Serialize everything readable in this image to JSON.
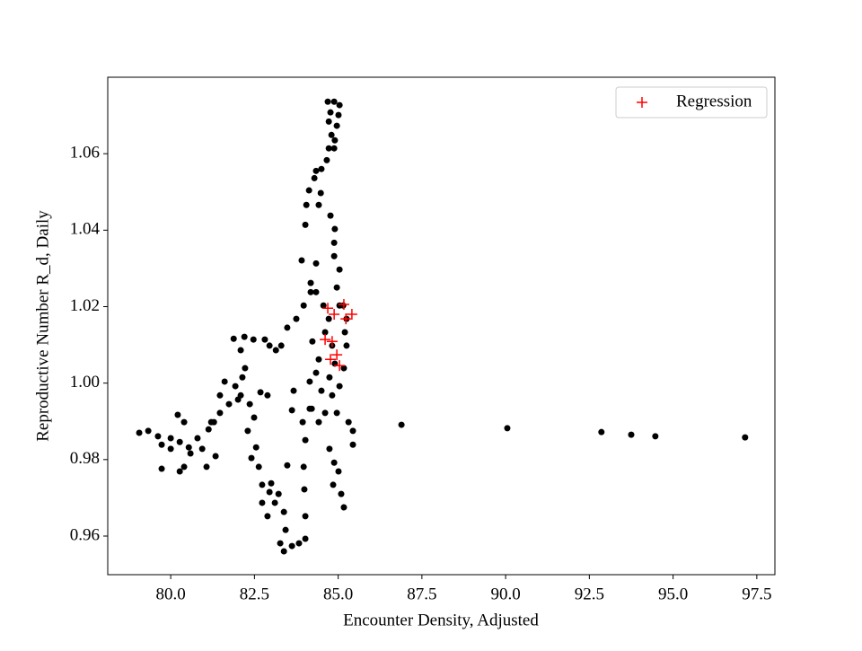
{
  "chart_data": {
    "type": "scatter",
    "xlabel": "Encounter Density, Adjusted",
    "ylabel": "Reproductive Number R_d, Daily",
    "xlim": [
      78.12,
      98.04
    ],
    "ylim": [
      0.9499,
      1.08
    ],
    "xticks": [
      {
        "value": 80,
        "label": "80.0"
      },
      {
        "value": 82.5,
        "label": "82.5"
      },
      {
        "value": 85,
        "label": "85.0"
      },
      {
        "value": 87.5,
        "label": "87.5"
      },
      {
        "value": 90,
        "label": "90.0"
      },
      {
        "value": 92.5,
        "label": "92.5"
      },
      {
        "value": 95,
        "label": "95.0"
      },
      {
        "value": 97.5,
        "label": "97.5"
      }
    ],
    "yticks": [
      0.96,
      0.98,
      {
        "value": 1,
        "label": "1.00"
      },
      1.02,
      1.04,
      1.06
    ],
    "legend": "upper right",
    "series": [
      {
        "color": "#000000",
        "marker": "o",
        "x": [
          84.69,
          84.88,
          85.04,
          84.77,
          85.01,
          84.72,
          84.96,
          84.8,
          84.9,
          84.72,
          84.88,
          84.66,
          84.5,
          84.34,
          84.29,
          84.13,
          84.48,
          84.05,
          84.42,
          84.77,
          84.9,
          84.02,
          84.88,
          83.91,
          84.88,
          84.34,
          85.04,
          84.18,
          84.96,
          84.34,
          85.04,
          84.56,
          85.15,
          84.72,
          85.25,
          84.61,
          85.2,
          84.23,
          84.82,
          85.25,
          84.42,
          84.9,
          85.17,
          84.34,
          84.74,
          84.15,
          85.04,
          84.5,
          84.82,
          84.21,
          84.61,
          84.96,
          85.31,
          85.44,
          85.44,
          84.42,
          84.74,
          84.88,
          85.01,
          84.85,
          85.09,
          85.17,
          84.15,
          83.94,
          84.02,
          83.97,
          83.99,
          84.02,
          84.02,
          83.83,
          83.62,
          83.38,
          83.27,
          83.43,
          83.38,
          83.11,
          82.89,
          82.73,
          82.95,
          82.73,
          82.63,
          82.41,
          82.55,
          82.3,
          82.49,
          82.36,
          82.09,
          82.14,
          82.22,
          82.09,
          81.88,
          82.2,
          82.47,
          82.81,
          82.95,
          83.14,
          83.3,
          83.48,
          83.75,
          83.97,
          84.18,
          82.68,
          82.89,
          83.67,
          83.62,
          83.48,
          83.22,
          83.0,
          82.01,
          81.74,
          81.47,
          81.29,
          81.13,
          80.8,
          80.54,
          80.27,
          80.0,
          79.62,
          79.33,
          79.06,
          79.73,
          80.0,
          80.27,
          80.4,
          80.59,
          80.94,
          81.07,
          81.34,
          81.61,
          81.93,
          81.47,
          81.21,
          80.4,
          80.21,
          79.73,
          86.89,
          90.05,
          92.86,
          93.75,
          94.47,
          97.15
        ],
        "values": [
          1.0736,
          1.0736,
          1.0727,
          1.0708,
          1.0701,
          1.0684,
          1.0673,
          1.0649,
          1.0635,
          1.0614,
          1.0614,
          1.0583,
          1.056,
          1.0555,
          1.0536,
          1.0504,
          1.0497,
          1.0466,
          1.0466,
          1.0438,
          1.0403,
          1.0414,
          1.0367,
          1.0321,
          1.0332,
          1.0313,
          1.0297,
          1.0262,
          1.025,
          1.0238,
          1.0203,
          1.0203,
          1.0203,
          1.0168,
          1.0168,
          1.0133,
          1.0133,
          1.0109,
          1.0098,
          1.0098,
          1.0062,
          1.0051,
          1.0039,
          1.0027,
          1.0015,
          1.0004,
          0.9992,
          0.998,
          0.9968,
          0.9933,
          0.9922,
          0.9922,
          0.9898,
          0.9875,
          0.9839,
          0.9898,
          0.9828,
          0.9792,
          0.9769,
          0.9734,
          0.971,
          0.9675,
          0.9933,
          0.9898,
          0.9851,
          0.9781,
          0.9722,
          0.9652,
          0.9593,
          0.9581,
          0.9574,
          0.956,
          0.9581,
          0.9616,
          0.9663,
          0.9687,
          0.9652,
          0.9687,
          0.9715,
          0.9734,
          0.9781,
          0.9804,
          0.9832,
          0.9875,
          0.991,
          0.9945,
          0.9968,
          1.0015,
          1.0039,
          1.0086,
          1.0116,
          1.0121,
          1.0114,
          1.0114,
          1.0098,
          1.0086,
          1.0098,
          1.0145,
          1.0168,
          1.0203,
          1.0238,
          0.9976,
          0.9968,
          0.998,
          0.9929,
          0.9785,
          0.971,
          0.9738,
          0.9957,
          0.9945,
          0.9922,
          0.9898,
          0.9879,
          0.9856,
          0.9832,
          0.9846,
          0.9856,
          0.9861,
          0.9875,
          0.987,
          0.9839,
          0.9828,
          0.9769,
          0.9781,
          0.9816,
          0.9828,
          0.9781,
          0.9809,
          1.0004,
          0.9992,
          0.9968,
          0.9898,
          0.9898,
          0.9917,
          0.9776,
          0.9891,
          0.9882,
          0.9872,
          0.9865,
          0.9861,
          0.9858
        ]
      },
      {
        "name": "Regression",
        "color": "#ff0000",
        "marker": "+",
        "x": [
          84.69,
          85.17,
          85.41,
          85.23,
          84.61,
          84.96,
          84.77,
          85.04,
          84.82,
          84.88
        ],
        "values": [
          1.0196,
          1.0206,
          1.018,
          1.0168,
          1.0114,
          1.0074,
          1.0062,
          1.0046,
          1.0109,
          1.018
        ]
      }
    ]
  }
}
